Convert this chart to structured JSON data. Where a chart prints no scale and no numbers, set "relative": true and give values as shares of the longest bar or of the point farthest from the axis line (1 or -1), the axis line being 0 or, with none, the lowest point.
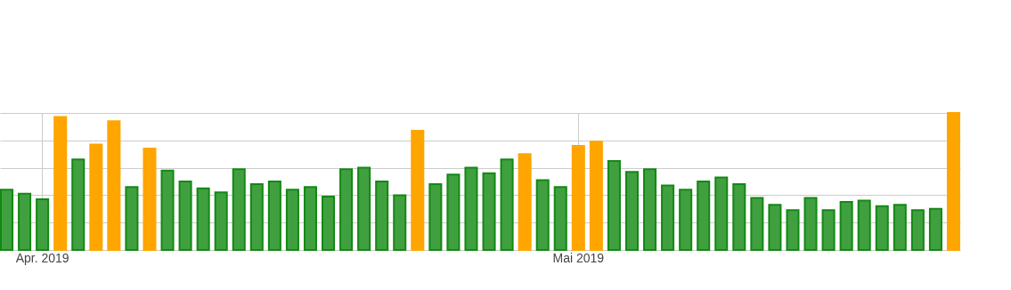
{
  "chart_data": {
    "type": "bar",
    "relative": true,
    "grid": true,
    "categories": [
      null,
      null,
      "Apr. 2019",
      null,
      null,
      null,
      null,
      null,
      null,
      null,
      null,
      null,
      null,
      null,
      null,
      null,
      null,
      null,
      null,
      null,
      null,
      null,
      null,
      null,
      null,
      null,
      null,
      null,
      null,
      null,
      null,
      null,
      "Mai 2019",
      null,
      null,
      null,
      null,
      null,
      null,
      null,
      null,
      null,
      null,
      null,
      null,
      null,
      null,
      null,
      null,
      null,
      null,
      null,
      null,
      null
    ],
    "values": [
      0.44,
      0.41,
      0.37,
      0.97,
      0.66,
      0.77,
      0.94,
      0.46,
      0.74,
      0.58,
      0.5,
      0.45,
      0.42,
      0.59,
      0.48,
      0.5,
      0.44,
      0.46,
      0.39,
      0.59,
      0.6,
      0.5,
      0.4,
      0.87,
      0.48,
      0.55,
      0.6,
      0.56,
      0.66,
      0.7,
      0.51,
      0.46,
      0.76,
      0.79,
      0.65,
      0.57,
      0.59,
      0.47,
      0.44,
      0.5,
      0.53,
      0.48,
      0.38,
      0.33,
      0.29,
      0.38,
      0.29,
      0.35,
      0.36,
      0.32,
      0.33,
      0.29,
      0.3,
      1.0
    ],
    "colors": [
      "#40a040",
      "#40a040",
      "#40a040",
      "#ffa500",
      "#40a040",
      "#ffa500",
      "#ffa500",
      "#40a040",
      "#ffa500",
      "#40a040",
      "#40a040",
      "#40a040",
      "#40a040",
      "#40a040",
      "#40a040",
      "#40a040",
      "#40a040",
      "#40a040",
      "#40a040",
      "#40a040",
      "#40a040",
      "#40a040",
      "#40a040",
      "#ffa500",
      "#40a040",
      "#40a040",
      "#40a040",
      "#40a040",
      "#40a040",
      "#ffa500",
      "#40a040",
      "#40a040",
      "#ffa500",
      "#ffa500",
      "#40a040",
      "#40a040",
      "#40a040",
      "#40a040",
      "#40a040",
      "#40a040",
      "#40a040",
      "#40a040",
      "#40a040",
      "#40a040",
      "#40a040",
      "#40a040",
      "#40a040",
      "#40a040",
      "#40a040",
      "#40a040",
      "#40a040",
      "#40a040",
      "#40a040",
      "#ffa500"
    ]
  }
}
